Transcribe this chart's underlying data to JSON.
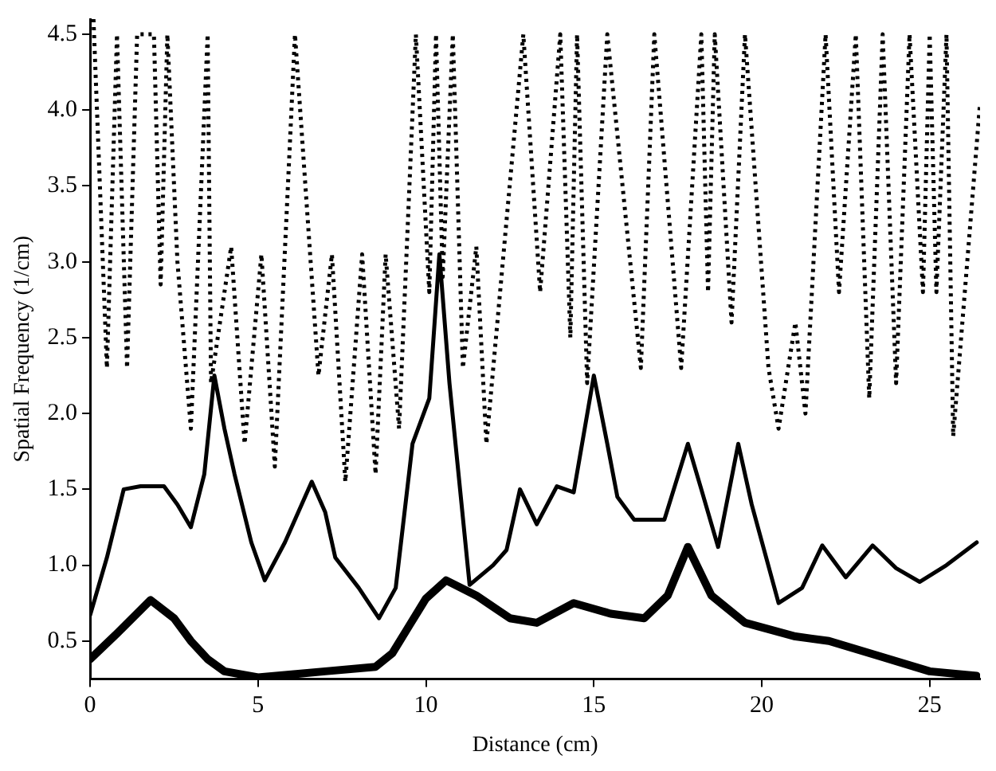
{
  "chart_data": {
    "type": "line",
    "xlabel": "Distance (cm)",
    "ylabel": "Spatial Frequency (1/cm)",
    "xlim": [
      0,
      26.5
    ],
    "ylim": [
      0.25,
      4.6
    ],
    "xticks": [
      0,
      5,
      10,
      15,
      20,
      25
    ],
    "yticks": [
      {
        "value": 0.5,
        "label": "0.5"
      },
      {
        "value": 1,
        "label": "1.0"
      },
      {
        "value": 1.5,
        "label": "1.5"
      },
      {
        "value": 2,
        "label": "2.0"
      },
      {
        "value": 2.5,
        "label": "2.5"
      },
      {
        "value": 3,
        "label": "3.0"
      },
      {
        "value": 3.5,
        "label": "3.5"
      },
      {
        "value": 4,
        "label": "4.0"
      },
      {
        "value": 4.5,
        "label": "4.5"
      }
    ],
    "grid": false,
    "legend": false,
    "marker": "none",
    "series": [
      {
        "color": "#000000",
        "line_style": "solid",
        "x": [
          0,
          0.5,
          1,
          1.5,
          2.2,
          2.6,
          3,
          3.4,
          3.7,
          4,
          4.3,
          4.8,
          5.2,
          5.8,
          6.6,
          7,
          7.3,
          8,
          8.6,
          9.1,
          9.6,
          10.1,
          10.4,
          10.7,
          11.3,
          12,
          12.4,
          12.8,
          13.3,
          13.9,
          14.4,
          15,
          15.4,
          15.7,
          16.2,
          17.1,
          17.8,
          18.2,
          18.7,
          19.3,
          19.7,
          20.5,
          21.2,
          21.8,
          22.5,
          23.3,
          24,
          24.7,
          25.5,
          26.4
        ],
        "values": [
          0.67,
          1.05,
          1.5,
          1.52,
          1.52,
          1.4,
          1.25,
          1.6,
          2.25,
          1.9,
          1.6,
          1.15,
          0.9,
          1.15,
          1.55,
          1.35,
          1.05,
          0.85,
          0.65,
          0.85,
          1.8,
          2.1,
          3.05,
          2.2,
          0.87,
          1,
          1.1,
          1.5,
          1.27,
          1.52,
          1.48,
          2.25,
          1.8,
          1.45,
          1.3,
          1.3,
          1.8,
          1.5,
          1.12,
          1.8,
          1.4,
          0.75,
          0.85,
          1.13,
          0.92,
          1.13,
          0.98,
          0.89,
          1,
          1.15
        ]
      },
      {
        "color": "#000000",
        "line_style": "solid",
        "x": [
          0,
          0.8,
          1.8,
          2.5,
          3,
          3.5,
          4,
          5,
          6,
          7,
          8.5,
          9,
          9.5,
          10,
          10.6,
          11.5,
          12.5,
          13.3,
          14.4,
          15.5,
          16.5,
          17.2,
          17.8,
          18.5,
          19.5,
          21,
          22,
          23.5,
          25,
          26.4
        ],
        "values": [
          0.38,
          0.55,
          0.77,
          0.65,
          0.5,
          0.38,
          0.3,
          0.26,
          0.28,
          0.3,
          0.33,
          0.42,
          0.6,
          0.78,
          0.9,
          0.8,
          0.65,
          0.62,
          0.75,
          0.68,
          0.65,
          0.8,
          1.12,
          0.8,
          0.62,
          0.53,
          0.5,
          0.4,
          0.3,
          0.27
        ]
      },
      {
        "color": "#000000",
        "line_style": "dotted",
        "x": [
          0.1,
          0.5,
          0.8,
          1.1,
          1.4,
          1.9,
          2.1,
          2.3,
          2.6,
          3,
          3.5,
          3.6,
          4.2,
          4.6,
          5.1,
          5.5,
          6.1,
          6.8,
          7.2,
          7.6,
          8.1,
          8.5,
          8.8,
          9.2,
          9.7,
          10.1,
          10.3,
          10.5,
          10.8,
          11.1,
          11.5,
          11.8,
          12.9,
          13.4,
          14,
          14.3,
          14.5,
          14.8,
          15.4,
          16.4,
          16.8,
          17.6,
          18.2,
          18.4,
          18.6,
          19.1,
          19.5,
          20.2,
          20.5,
          21,
          21.3,
          21.9,
          22.3,
          22.8,
          23.2,
          23.6,
          24,
          24.4,
          24.8,
          25,
          25.2,
          25.5,
          25.7,
          26.5
        ],
        "values": [
          4.6,
          2.3,
          4.5,
          2.3,
          4.5,
          4.5,
          2.85,
          4.5,
          3,
          1.9,
          4.5,
          2.2,
          3.1,
          1.8,
          3.05,
          1.65,
          4.5,
          2.25,
          3.05,
          1.55,
          3.05,
          1.6,
          3.05,
          1.9,
          4.5,
          2.8,
          4.5,
          2.9,
          4.5,
          2.3,
          3.1,
          1.8,
          4.5,
          2.8,
          4.5,
          2.5,
          4.5,
          2.2,
          4.5,
          2.3,
          4.5,
          2.3,
          4.5,
          2.8,
          4.5,
          2.6,
          4.5,
          2.3,
          1.9,
          2.6,
          2,
          4.5,
          2.8,
          4.5,
          2.1,
          4.5,
          2.2,
          4.5,
          2.8,
          4.5,
          2.8,
          4.5,
          1.85,
          4.05
        ]
      }
    ]
  }
}
